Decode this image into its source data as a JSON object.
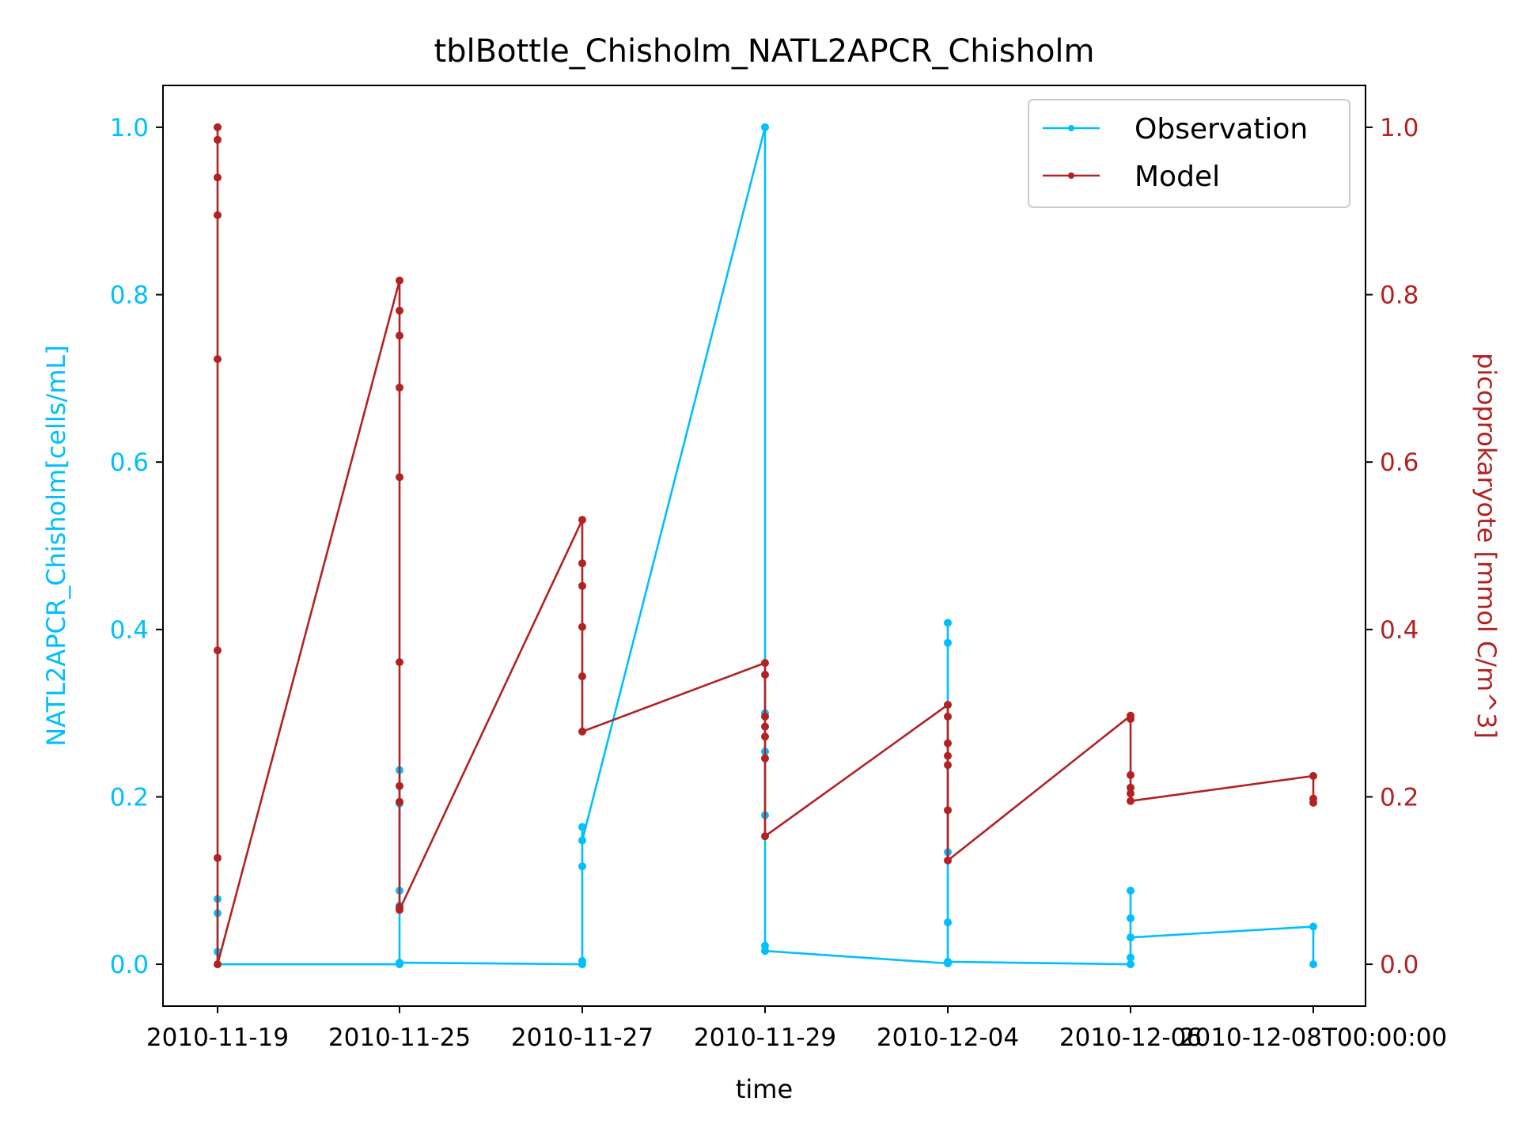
{
  "chart_data": {
    "type": "line",
    "title": "tblBottle_Chisholm_NATL2APCR_Chisholm",
    "xlabel": "time",
    "ylabel_left": "NATL2APCR_Chisholm[cells/mL]",
    "ylabel_right": "picoprokaryote [mmol C/m^3]",
    "x_ticks": [
      "2010-11-19T00:00:00",
      "2010-11-25T00:00:00",
      "2010-11-27T00:00:00",
      "2010-11-29T00:00:00",
      "2010-12-04T00:00:00",
      "2010-12-06T00:00:00",
      "2010-12-08T00:00:00"
    ],
    "x_tick_display": [
      "2010-11-19",
      "2010-11-25",
      "2010-11-27",
      "2010-11-29",
      "2010-12-04",
      "2010-12-06",
      "2010-12-08T00:00:00"
    ],
    "ylim_left": [
      -0.05,
      1.05
    ],
    "ylim_right": [
      -0.05,
      1.05
    ],
    "yticks": [
      0.0,
      0.2,
      0.4,
      0.6,
      0.8,
      1.0
    ],
    "ytick_labels": [
      "0.0",
      "0.2",
      "0.4",
      "0.6",
      "0.8",
      "1.0"
    ],
    "legend_position": "upper right",
    "colors": {
      "observation": "#00bfff",
      "model": "#b22222"
    },
    "series": [
      {
        "name": "Observation",
        "axis": "left",
        "points": [
          [
            0,
            0.015
          ],
          [
            0,
            0.078
          ],
          [
            0,
            0.061
          ],
          [
            0,
            0.0
          ],
          [
            1,
            0.0
          ],
          [
            1,
            0.232
          ],
          [
            1,
            0.192
          ],
          [
            1,
            0.088
          ],
          [
            1,
            0.07
          ],
          [
            1,
            0.002
          ],
          [
            2,
            0.0
          ],
          [
            2,
            0.164
          ],
          [
            2,
            0.117
          ],
          [
            2,
            0.004
          ],
          [
            2,
            0.148
          ],
          [
            3,
            1.0
          ],
          [
            3,
            0.3
          ],
          [
            3,
            0.254
          ],
          [
            3,
            0.178
          ],
          [
            3,
            0.022
          ],
          [
            3,
            0.016
          ],
          [
            4,
            0.001
          ],
          [
            4,
            0.408
          ],
          [
            4,
            0.384
          ],
          [
            4,
            0.134
          ],
          [
            4,
            0.05
          ],
          [
            4,
            0.003
          ],
          [
            5,
            0.0
          ],
          [
            5,
            0.088
          ],
          [
            5,
            0.055
          ],
          [
            5,
            0.008
          ],
          [
            5,
            0.032
          ],
          [
            6,
            0.045
          ],
          [
            6,
            0.0
          ]
        ]
      },
      {
        "name": "Model",
        "axis": "right",
        "points": [
          [
            0,
            1.0
          ],
          [
            0,
            0.985
          ],
          [
            0,
            0.94
          ],
          [
            0,
            0.895
          ],
          [
            0,
            0.723
          ],
          [
            0,
            0.375
          ],
          [
            0,
            0.127
          ],
          [
            0,
            0.0
          ],
          [
            1,
            0.817
          ],
          [
            1,
            0.781
          ],
          [
            1,
            0.751
          ],
          [
            1,
            0.689
          ],
          [
            1,
            0.582
          ],
          [
            1,
            0.361
          ],
          [
            1,
            0.213
          ],
          [
            1,
            0.194
          ],
          [
            1,
            0.068
          ],
          [
            1,
            0.065
          ],
          [
            2,
            0.531
          ],
          [
            2,
            0.479
          ],
          [
            2,
            0.452
          ],
          [
            2,
            0.403
          ],
          [
            2,
            0.344
          ],
          [
            2,
            0.278
          ],
          [
            3,
            0.36
          ],
          [
            3,
            0.346
          ],
          [
            3,
            0.296
          ],
          [
            3,
            0.284
          ],
          [
            3,
            0.272
          ],
          [
            3,
            0.246
          ],
          [
            3,
            0.153
          ],
          [
            4,
            0.31
          ],
          [
            4,
            0.296
          ],
          [
            4,
            0.264
          ],
          [
            4,
            0.249
          ],
          [
            4,
            0.238
          ],
          [
            4,
            0.184
          ],
          [
            4,
            0.124
          ],
          [
            5,
            0.297
          ],
          [
            5,
            0.293
          ],
          [
            5,
            0.226
          ],
          [
            5,
            0.211
          ],
          [
            5,
            0.204
          ],
          [
            5,
            0.195
          ],
          [
            6,
            0.225
          ],
          [
            6,
            0.198
          ],
          [
            6,
            0.193
          ]
        ]
      }
    ]
  }
}
